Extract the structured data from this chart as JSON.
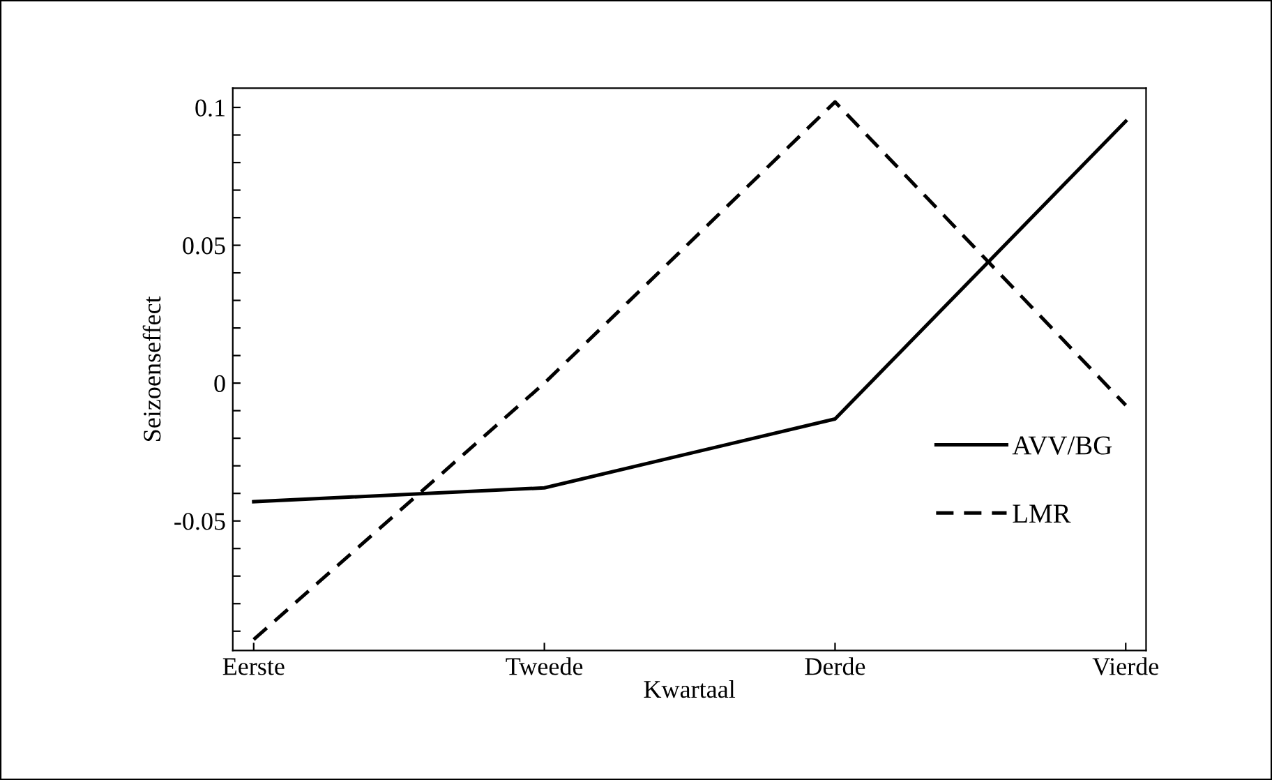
{
  "chart_data": {
    "type": "line",
    "xlabel": "Kwartaal",
    "ylabel": "Seizoenseffect",
    "categories": [
      "Eerste",
      "Tweede",
      "Derde",
      "Vierde"
    ],
    "series": [
      {
        "name": "AVV/BG",
        "color": "#000000",
        "line_style": "solid",
        "values": [
          -0.043,
          -0.038,
          -0.013,
          0.095
        ]
      },
      {
        "name": "LMR",
        "color": "#000000",
        "line_style": "dashed",
        "values": [
          -0.093,
          0.0,
          0.102,
          -0.008
        ]
      }
    ],
    "ylim": [
      -0.097,
      0.107
    ],
    "yticks": [
      {
        "value": -0.09,
        "label": null
      },
      {
        "value": -0.08,
        "label": null
      },
      {
        "value": -0.07,
        "label": null
      },
      {
        "value": -0.06,
        "label": null
      },
      {
        "value": -0.05,
        "label": "-0.05"
      },
      {
        "value": -0.04,
        "label": null
      },
      {
        "value": -0.03,
        "label": null
      },
      {
        "value": -0.02,
        "label": null
      },
      {
        "value": -0.01,
        "label": null
      },
      0,
      {
        "value": 0.01,
        "label": null
      },
      {
        "value": 0.02,
        "label": null
      },
      {
        "value": 0.03,
        "label": null
      },
      {
        "value": 0.04,
        "label": null
      },
      0.05,
      {
        "value": 0.06,
        "label": null
      },
      {
        "value": 0.07,
        "label": null
      },
      {
        "value": 0.08,
        "label": null
      },
      {
        "value": 0.09,
        "label": null
      },
      0.1
    ],
    "grid": false,
    "legend": "right",
    "marker": "none"
  }
}
